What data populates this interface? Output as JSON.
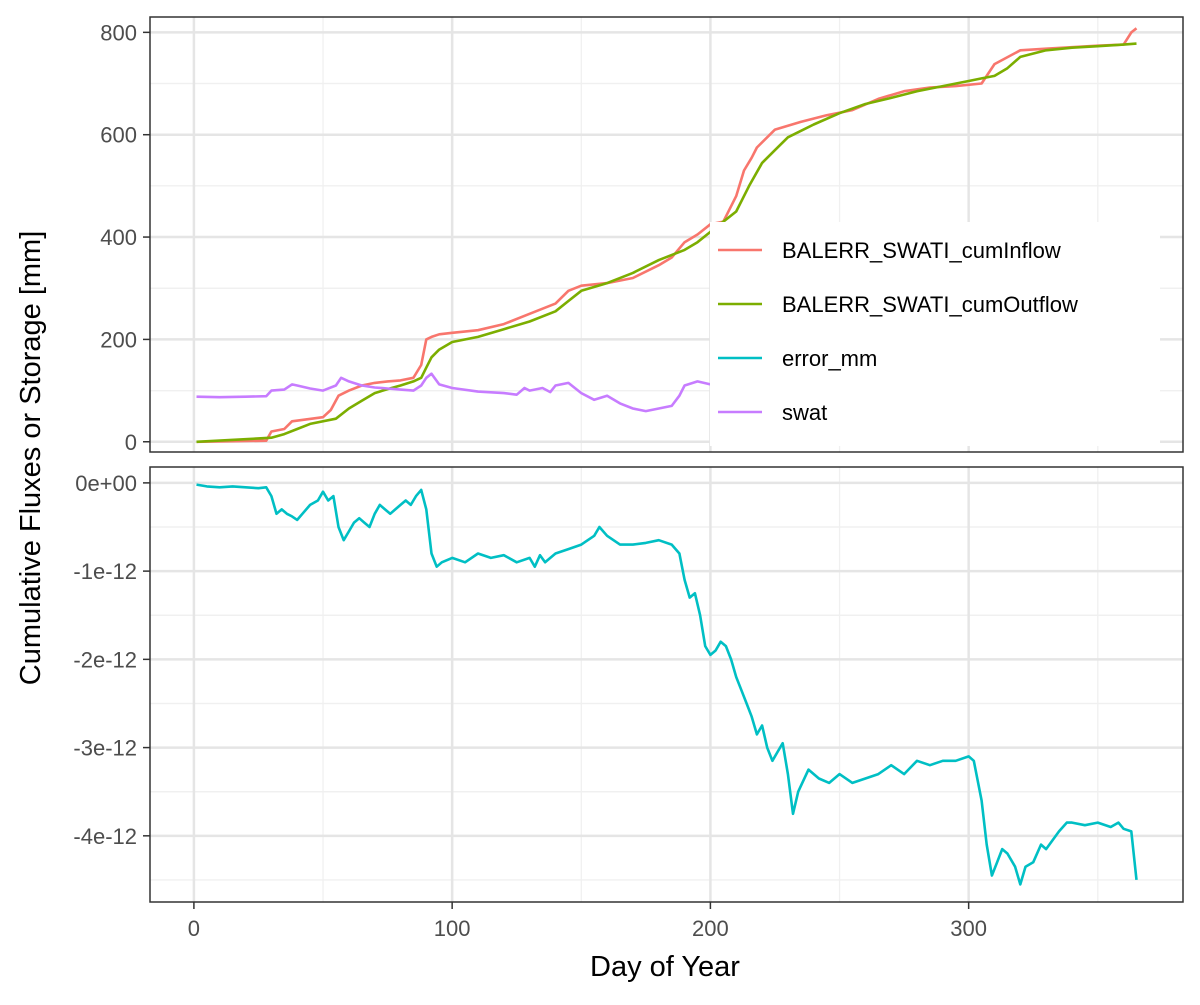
{
  "chart_data": {
    "type": "line",
    "xlabel": "Day of Year",
    "ylabel": "Cumulative Fluxes or Storage [mm]",
    "x_ticks": [
      0,
      100,
      200,
      300
    ],
    "xlim": [
      -17,
      383
    ],
    "grid": true,
    "legend_position": "right, inside top panel",
    "panels": [
      {
        "ylim": [
          -20,
          830
        ],
        "y_ticks": [
          0,
          200,
          400,
          600,
          800
        ],
        "y_tick_labels": [
          "0",
          "200",
          "400",
          "600",
          "800"
        ],
        "series": [
          {
            "name": "BALERR_SWATI_cumInflow",
            "color": "#F8766D",
            "x": [
              1,
              28,
              30,
              35,
              38,
              50,
              53,
              56,
              60,
              65,
              70,
              75,
              80,
              85,
              88,
              90,
              92,
              95,
              100,
              110,
              120,
              130,
              140,
              145,
              150,
              160,
              170,
              180,
              185,
              190,
              195,
              200,
              205,
              210,
              213,
              216,
              218,
              225,
              235,
              245,
              255,
              265,
              275,
              285,
              295,
              305,
              310,
              320,
              330,
              340,
              350,
              360,
              363,
              365
            ],
            "y": [
              0,
              2,
              20,
              25,
              40,
              48,
              62,
              90,
              100,
              110,
              115,
              118,
              120,
              125,
              150,
              200,
              205,
              210,
              213,
              218,
              230,
              250,
              270,
              295,
              305,
              310,
              320,
              345,
              360,
              390,
              405,
              425,
              430,
              480,
              530,
              555,
              575,
              610,
              625,
              638,
              648,
              670,
              685,
              692,
              695,
              700,
              738,
              765,
              768,
              771,
              774,
              776,
              800,
              808
            ]
          },
          {
            "name": "BALERR_SWATI_cumOutflow",
            "color": "#7CAE00",
            "x": [
              1,
              20,
              30,
              35,
              40,
              45,
              55,
              60,
              65,
              70,
              75,
              80,
              85,
              88,
              90,
              92,
              95,
              100,
              110,
              120,
              130,
              140,
              145,
              150,
              160,
              170,
              180,
              190,
              195,
              200,
              205,
              210,
              215,
              220,
              225,
              230,
              240,
              250,
              260,
              270,
              280,
              290,
              300,
              305,
              310,
              315,
              320,
              330,
              340,
              350,
              360,
              365
            ],
            "y": [
              0,
              5,
              8,
              15,
              25,
              35,
              45,
              65,
              80,
              95,
              103,
              110,
              118,
              125,
              145,
              165,
              180,
              195,
              205,
              220,
              235,
              255,
              275,
              295,
              310,
              330,
              355,
              375,
              390,
              410,
              430,
              450,
              500,
              545,
              570,
              595,
              620,
              642,
              660,
              672,
              685,
              695,
              705,
              710,
              715,
              730,
              752,
              765,
              770,
              773,
              776,
              778
            ]
          },
          {
            "name": "swat",
            "color": "#C77CFF",
            "x": [
              1,
              10,
              20,
              28,
              30,
              35,
              38,
              40,
              45,
              50,
              55,
              57,
              60,
              65,
              70,
              75,
              80,
              85,
              88,
              90,
              92,
              95,
              100,
              110,
              120,
              125,
              128,
              130,
              135,
              138,
              140,
              145,
              150,
              155,
              160,
              165,
              170,
              175,
              180,
              185,
              188,
              190,
              195,
              200,
              205,
              210,
              215,
              220,
              225,
              228,
              230,
              235,
              240,
              245,
              250,
              255,
              260,
              265,
              270,
              275,
              280,
              285,
              290,
              295,
              300,
              305,
              307,
              310,
              315,
              318,
              320,
              325,
              330,
              340,
              350,
              360,
              363,
              365
            ],
            "y": [
              88,
              87,
              88,
              89,
              100,
              102,
              112,
              110,
              104,
              100,
              110,
              125,
              118,
              110,
              106,
              104,
              102,
              100,
              110,
              125,
              133,
              112,
              105,
              98,
              95,
              92,
              105,
              100,
              105,
              97,
              110,
              115,
              95,
              82,
              90,
              75,
              65,
              60,
              65,
              70,
              90,
              110,
              118,
              112,
              100,
              108,
              115,
              112,
              100,
              120,
              108,
              105,
              100,
              108,
              100,
              95,
              92,
              100,
              98,
              100,
              96,
              92,
              95,
              88,
              82,
              78,
              78,
              115,
              102,
              100,
              115,
              100,
              92,
              90,
              90,
              90,
              110,
              116
            ]
          }
        ]
      },
      {
        "ylim": [
          -4.75e-12,
          1.8e-13
        ],
        "y_ticks": [
          0,
          -1e-12,
          -2e-12,
          -3e-12,
          -4e-12
        ],
        "y_tick_labels": [
          "0e+00",
          "-1e-12",
          "-2e-12",
          "-3e-12",
          "-4e-12"
        ],
        "series": [
          {
            "name": "error_mm",
            "color": "#00BFC4",
            "x": [
              1,
              5,
              10,
              15,
              20,
              25,
              28,
              30,
              32,
              34,
              36,
              38,
              40,
              42,
              45,
              48,
              50,
              52,
              54,
              56,
              58,
              60,
              62,
              64,
              66,
              68,
              70,
              72,
              74,
              76,
              78,
              80,
              82,
              84,
              86,
              88,
              90,
              92,
              94,
              96,
              100,
              105,
              110,
              115,
              120,
              125,
              130,
              132,
              134,
              136,
              140,
              145,
              150,
              155,
              157,
              160,
              165,
              170,
              175,
              180,
              185,
              188,
              190,
              192,
              194,
              196,
              198,
              200,
              202,
              204,
              206,
              208,
              210,
              212,
              214,
              216,
              218,
              220,
              222,
              224,
              226,
              228,
              230,
              232,
              234,
              238,
              242,
              246,
              250,
              255,
              260,
              265,
              270,
              275,
              280,
              285,
              290,
              295,
              300,
              302,
              305,
              307,
              309,
              311,
              313,
              315,
              318,
              320,
              322,
              325,
              328,
              330,
              335,
              338,
              340,
              345,
              350,
              355,
              358,
              360,
              363,
              365
            ],
            "y": [
              -0.02,
              -0.04,
              -0.05,
              -0.04,
              -0.05,
              -0.06,
              -0.05,
              -0.15,
              -0.35,
              -0.3,
              -0.35,
              -0.38,
              -0.42,
              -0.35,
              -0.25,
              -0.2,
              -0.1,
              -0.2,
              -0.15,
              -0.5,
              -0.65,
              -0.55,
              -0.45,
              -0.4,
              -0.45,
              -0.5,
              -0.35,
              -0.25,
              -0.3,
              -0.35,
              -0.3,
              -0.25,
              -0.2,
              -0.25,
              -0.15,
              -0.08,
              -0.3,
              -0.8,
              -0.95,
              -0.9,
              -0.85,
              -0.9,
              -0.8,
              -0.85,
              -0.82,
              -0.9,
              -0.85,
              -0.95,
              -0.82,
              -0.9,
              -0.8,
              -0.75,
              -0.7,
              -0.6,
              -0.5,
              -0.6,
              -0.7,
              -0.7,
              -0.68,
              -0.65,
              -0.7,
              -0.8,
              -1.1,
              -1.3,
              -1.25,
              -1.5,
              -1.85,
              -1.95,
              -1.9,
              -1.8,
              -1.85,
              -2.0,
              -2.2,
              -2.35,
              -2.5,
              -2.65,
              -2.85,
              -2.75,
              -3.0,
              -3.15,
              -3.05,
              -2.95,
              -3.3,
              -3.75,
              -3.5,
              -3.25,
              -3.35,
              -3.4,
              -3.3,
              -3.4,
              -3.35,
              -3.3,
              -3.2,
              -3.3,
              -3.15,
              -3.2,
              -3.15,
              -3.15,
              -3.1,
              -3.15,
              -3.6,
              -4.1,
              -4.45,
              -4.3,
              -4.15,
              -4.2,
              -4.35,
              -4.55,
              -4.35,
              -4.3,
              -4.1,
              -4.15,
              -3.95,
              -3.85,
              -3.85,
              -3.88,
              -3.85,
              -3.9,
              -3.85,
              -3.92,
              -3.95,
              -4.5
            ]
          }
        ]
      }
    ]
  }
}
